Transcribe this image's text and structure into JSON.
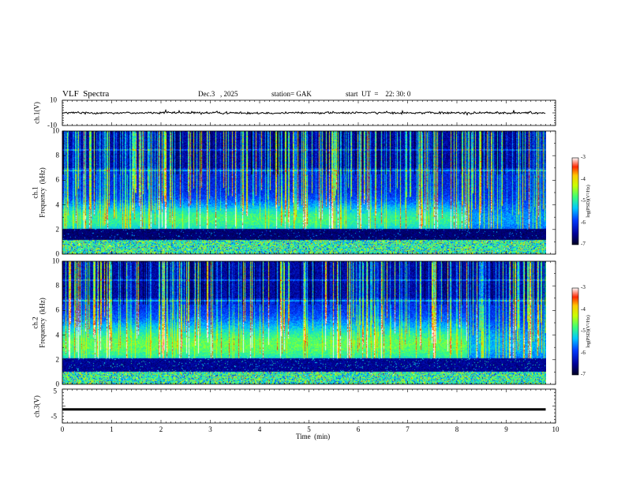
{
  "header": {
    "title": "VLF  Spectra",
    "date": "Dec.3   , 2025",
    "station": "station= GAK",
    "start": "start  UT  =    22: 30: 0"
  },
  "chart_data": [
    {
      "type": "line",
      "name": "ch1-waveform",
      "ylabel": "ch.1(V)",
      "ylim": [
        -10,
        10
      ],
      "yticks": [
        "10",
        "-10"
      ],
      "xlim": [
        0,
        10
      ],
      "x_data_end": 9.8,
      "values_level_v": 0
    },
    {
      "type": "heatmap",
      "name": "ch1-spectrogram",
      "ylabel": "ch.1\nFrequency  (kHz)",
      "ylim": [
        0,
        10
      ],
      "yticks": [
        "0",
        "2",
        "4",
        "6",
        "8",
        "10"
      ],
      "xlim": [
        0,
        10
      ],
      "x_data_end": 9.8,
      "colorbar": {
        "label": "log(PSD)(V²/Hz)",
        "range": [
          -7,
          -3
        ],
        "ticks": [
          "-3",
          "-4",
          "-5",
          "-6",
          "-7"
        ]
      }
    },
    {
      "type": "heatmap",
      "name": "ch2-spectrogram",
      "ylabel": "ch.2\nFrequency  (kHz)",
      "ylim": [
        0,
        10
      ],
      "yticks": [
        "0",
        "2",
        "4",
        "6",
        "8",
        "10"
      ],
      "xlim": [
        0,
        10
      ],
      "x_data_end": 9.8,
      "colorbar": {
        "label": "log(PSD)(V²/Hz)",
        "range": [
          -7,
          -3
        ],
        "ticks": [
          "-3",
          "-4",
          "-5",
          "-6",
          "-7"
        ]
      }
    },
    {
      "type": "line",
      "name": "ch3-waveform",
      "ylabel": "ch.3(V)",
      "ylim": [
        -5,
        5
      ],
      "yticks": [
        "5",
        "-5"
      ],
      "xlim": [
        0,
        10
      ],
      "x_data_end": 9.8,
      "values_level_v": -1
    }
  ],
  "xaxis": {
    "label": "Time  (min)",
    "ticks": [
      "0",
      "1",
      "2",
      "3",
      "4",
      "5",
      "6",
      "7",
      "8",
      "9",
      "10"
    ]
  }
}
